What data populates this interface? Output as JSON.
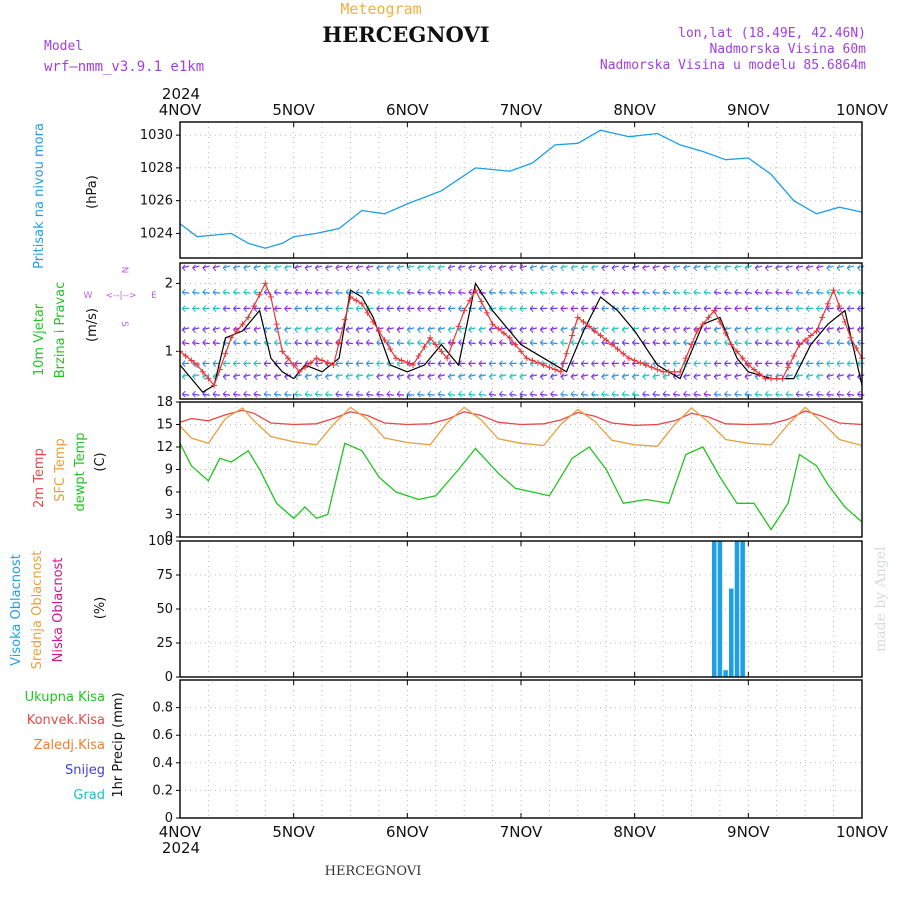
{
  "header": {
    "subtitle": "Meteogram",
    "title": "HERCEGNOVI",
    "model_label": "Model",
    "model_name": "wrf—nmm_v3.9.1  e1km",
    "coords": "lon,lat (18.49E, 42.46N)",
    "altitude": "Nadmorska Visina 60m",
    "model_altitude": "Nadmorska Visina u modelu 85.6864m",
    "bottom_station": "HERCEGNOVI",
    "credit": "made by Angel"
  },
  "time_axis": {
    "year": "2024",
    "ticks": [
      "4NOV",
      "5NOV",
      "6NOV",
      "7NOV",
      "8NOV",
      "9NOV",
      "10NOV"
    ]
  },
  "colors": {
    "pressure": "#1e9fe6",
    "wind_speed": "#000000",
    "gust": "#e8353a",
    "temp2m": "#e8484a",
    "sfc_temp": "#e8a040",
    "dewpoint": "#22c422",
    "cloud_high": "#1e9fe6",
    "cloud_mid": "#e8a040",
    "cloud_low": "#d01890",
    "header_orange": "#f0b040",
    "header_purple": "#a040e0"
  },
  "panels": {
    "pressure": {
      "labels": [
        "Pritisak na nivou mora"
      ],
      "unit": "(hPa)"
    },
    "wind": {
      "labels": [
        "10m Vjetar",
        "Brzina i Pravac"
      ],
      "unit": "(m/s)",
      "compass": [
        "N",
        "W",
        "E",
        "S",
        "<--|-->"
      ]
    },
    "temperature": {
      "labels": [
        "2m Temp",
        "SFC Temp",
        "dewpt Temp"
      ],
      "unit": "(C)"
    },
    "cloud": {
      "labels": [
        "Visoka Oblacnost",
        "Srednja Oblacnost",
        "Niska Oblacnost"
      ],
      "unit": "(%)"
    },
    "precip": {
      "labels": [
        "Ukupna Kisa",
        "Konvek.Kisa",
        "Zaledj.Kisa",
        "Snijeg",
        "Grad"
      ],
      "unit": "1hr Precip (mm)"
    }
  },
  "chart_data": [
    {
      "type": "line",
      "panel": "pressure",
      "ylim": [
        1022.5,
        1030.8
      ],
      "yticks": [
        1024,
        1026,
        1028,
        1030
      ],
      "grid": true,
      "series": [
        {
          "name": "Pritisak na nivou mora",
          "x": [
            0,
            0.15,
            0.3,
            0.45,
            0.6,
            0.75,
            0.9,
            1.0,
            1.2,
            1.4,
            1.6,
            1.8,
            2.0,
            2.3,
            2.6,
            2.9,
            3.1,
            3.3,
            3.5,
            3.7,
            3.95,
            4.2,
            4.4,
            4.6,
            4.8,
            5.0,
            5.2,
            5.4,
            5.6,
            5.8,
            6.0
          ],
          "y": [
            1024.6,
            1023.8,
            1023.9,
            1024.0,
            1023.4,
            1023.1,
            1023.4,
            1023.8,
            1024.0,
            1024.3,
            1025.4,
            1025.2,
            1025.8,
            1026.6,
            1028.0,
            1027.8,
            1028.3,
            1029.4,
            1029.5,
            1030.3,
            1029.9,
            1030.1,
            1029.4,
            1029.0,
            1028.5,
            1028.6,
            1027.6,
            1026.0,
            1025.2,
            1025.6,
            1025.3
          ]
        }
      ]
    },
    {
      "type": "line",
      "panel": "wind",
      "ylim": [
        0.3,
        2.3
      ],
      "yticks": [
        1,
        2
      ],
      "grid": true,
      "series": [
        {
          "name": "10m Vjetar",
          "x": [
            0,
            0.1,
            0.2,
            0.3,
            0.4,
            0.55,
            0.7,
            0.8,
            0.9,
            1.0,
            1.1,
            1.25,
            1.4,
            1.5,
            1.6,
            1.7,
            1.85,
            2.0,
            2.15,
            2.3,
            2.45,
            2.6,
            2.75,
            2.9,
            3.0,
            3.2,
            3.4,
            3.55,
            3.7,
            3.85,
            4.0,
            4.2,
            4.4,
            4.6,
            4.75,
            4.9,
            5.0,
            5.2,
            5.4,
            5.55,
            5.7,
            5.85,
            6.0
          ],
          "y": [
            0.8,
            0.6,
            0.4,
            0.5,
            1.2,
            1.3,
            1.6,
            0.9,
            0.7,
            0.6,
            0.8,
            0.7,
            0.9,
            1.9,
            1.8,
            1.5,
            0.8,
            0.7,
            0.8,
            1.1,
            0.8,
            2.0,
            1.6,
            1.3,
            1.1,
            0.9,
            0.7,
            1.3,
            1.8,
            1.6,
            1.3,
            0.8,
            0.6,
            1.4,
            1.5,
            0.9,
            0.7,
            0.6,
            0.6,
            1.1,
            1.4,
            1.6,
            0.5
          ]
        },
        {
          "name": "gust",
          "x": [
            0,
            0.15,
            0.3,
            0.45,
            0.6,
            0.75,
            0.8,
            0.9,
            1.05,
            1.2,
            1.35,
            1.5,
            1.6,
            1.75,
            1.9,
            2.05,
            2.2,
            2.35,
            2.5,
            2.6,
            2.75,
            2.9,
            3.05,
            3.2,
            3.35,
            3.5,
            3.65,
            3.8,
            3.95,
            4.1,
            4.25,
            4.4,
            4.55,
            4.7,
            4.85,
            5.0,
            5.15,
            5.3,
            5.45,
            5.6,
            5.75,
            5.9,
            6.0
          ],
          "y": [
            1.0,
            0.8,
            0.5,
            1.2,
            1.5,
            2.0,
            1.8,
            1.0,
            0.7,
            0.9,
            0.8,
            1.8,
            1.7,
            1.3,
            0.9,
            0.8,
            1.2,
            0.9,
            1.6,
            1.9,
            1.4,
            1.2,
            0.9,
            0.8,
            0.7,
            1.5,
            1.3,
            1.1,
            0.9,
            0.8,
            0.7,
            0.7,
            1.3,
            1.6,
            1.1,
            0.8,
            0.6,
            0.6,
            1.1,
            1.3,
            1.9,
            1.2,
            0.9
          ]
        }
      ]
    },
    {
      "type": "line",
      "panel": "temperature",
      "ylim": [
        0,
        18
      ],
      "yticks": [
        0,
        3,
        6,
        9,
        12,
        15,
        18
      ],
      "grid": true,
      "series": [
        {
          "name": "2m Temp",
          "x": [
            0,
            0.1,
            0.25,
            0.4,
            0.55,
            0.65,
            0.8,
            1.0,
            1.2,
            1.35,
            1.5,
            1.65,
            1.8,
            2.0,
            2.2,
            2.35,
            2.5,
            2.65,
            2.8,
            3.0,
            3.2,
            3.35,
            3.5,
            3.65,
            3.8,
            4.0,
            4.2,
            4.35,
            4.5,
            4.65,
            4.8,
            5.0,
            5.2,
            5.35,
            5.5,
            5.65,
            5.8,
            6.0
          ],
          "y": [
            15.3,
            15.8,
            15.5,
            16.3,
            16.9,
            16.5,
            15.2,
            15.0,
            15.1,
            15.8,
            16.7,
            16.2,
            15.2,
            15.0,
            15.1,
            15.7,
            16.7,
            16.2,
            15.3,
            15.0,
            15.1,
            15.6,
            16.6,
            16.1,
            15.2,
            14.9,
            15.0,
            15.5,
            16.5,
            16.0,
            15.1,
            15.0,
            15.1,
            15.7,
            16.8,
            16.1,
            15.2,
            15.0
          ]
        },
        {
          "name": "SFC Temp",
          "x": [
            0,
            0.1,
            0.25,
            0.4,
            0.55,
            0.65,
            0.8,
            1.0,
            1.2,
            1.35,
            1.5,
            1.65,
            1.8,
            2.0,
            2.2,
            2.35,
            2.5,
            2.65,
            2.8,
            3.0,
            3.2,
            3.35,
            3.5,
            3.65,
            3.8,
            4.0,
            4.2,
            4.35,
            4.5,
            4.65,
            4.8,
            5.0,
            5.2,
            5.35,
            5.5,
            5.65,
            5.8,
            6.0
          ],
          "y": [
            14.8,
            13.2,
            12.5,
            15.8,
            17.2,
            15.5,
            13.4,
            12.7,
            12.3,
            15.0,
            17.3,
            15.7,
            13.2,
            12.6,
            12.3,
            15.2,
            17.3,
            15.6,
            13.1,
            12.5,
            12.2,
            15.0,
            17.0,
            15.4,
            12.9,
            12.3,
            12.1,
            15.0,
            17.2,
            15.3,
            13.0,
            12.5,
            12.3,
            15.0,
            17.3,
            15.3,
            13.0,
            12.2
          ]
        },
        {
          "name": "dewpt Temp",
          "x": [
            0,
            0.1,
            0.25,
            0.35,
            0.45,
            0.6,
            0.7,
            0.85,
            1.0,
            1.1,
            1.2,
            1.3,
            1.45,
            1.6,
            1.75,
            1.9,
            2.1,
            2.25,
            2.45,
            2.6,
            2.8,
            2.95,
            3.1,
            3.25,
            3.45,
            3.6,
            3.75,
            3.9,
            4.1,
            4.3,
            4.45,
            4.6,
            4.75,
            4.9,
            5.05,
            5.2,
            5.35,
            5.45,
            5.6,
            5.7,
            5.85,
            6.0
          ],
          "y": [
            12.5,
            9.5,
            7.5,
            10.5,
            10.0,
            11.5,
            9.0,
            4.5,
            2.5,
            4.0,
            2.5,
            3.0,
            12.5,
            11.5,
            8.0,
            6.0,
            5.0,
            5.5,
            9.0,
            11.8,
            8.5,
            6.5,
            6.0,
            5.5,
            10.5,
            12.0,
            9.0,
            4.5,
            5.0,
            4.5,
            11.0,
            12.0,
            8.0,
            4.5,
            4.5,
            1.0,
            4.5,
            11.0,
            9.5,
            7.0,
            4.0,
            2.0
          ]
        }
      ]
    },
    {
      "type": "bar",
      "panel": "cloud",
      "ylim": [
        0,
        100
      ],
      "yticks": [
        0,
        25,
        50,
        75,
        100
      ],
      "grid": true,
      "series": [
        {
          "name": "Visoka Oblacnost",
          "x": [
            4.7,
            4.75,
            4.8,
            4.85,
            4.9,
            4.95
          ],
          "values": [
            100,
            100,
            5,
            65,
            100,
            100
          ]
        },
        {
          "name": "Srednja Oblacnost",
          "x": [],
          "values": []
        },
        {
          "name": "Niska Oblacnost",
          "x": [],
          "values": []
        }
      ]
    },
    {
      "type": "bar",
      "panel": "precip",
      "ylim": [
        0,
        1.0
      ],
      "yticks": [
        0,
        0.2,
        0.4,
        0.6,
        0.8
      ],
      "grid": true,
      "series": [
        {
          "name": "Ukupna Kisa",
          "x": [],
          "values": []
        },
        {
          "name": "Konvek.Kisa",
          "x": [],
          "values": []
        },
        {
          "name": "Zaledj.Kisa",
          "x": [],
          "values": []
        },
        {
          "name": "Snijeg",
          "x": [],
          "values": []
        },
        {
          "name": "Grad",
          "x": [],
          "values": []
        }
      ]
    }
  ]
}
